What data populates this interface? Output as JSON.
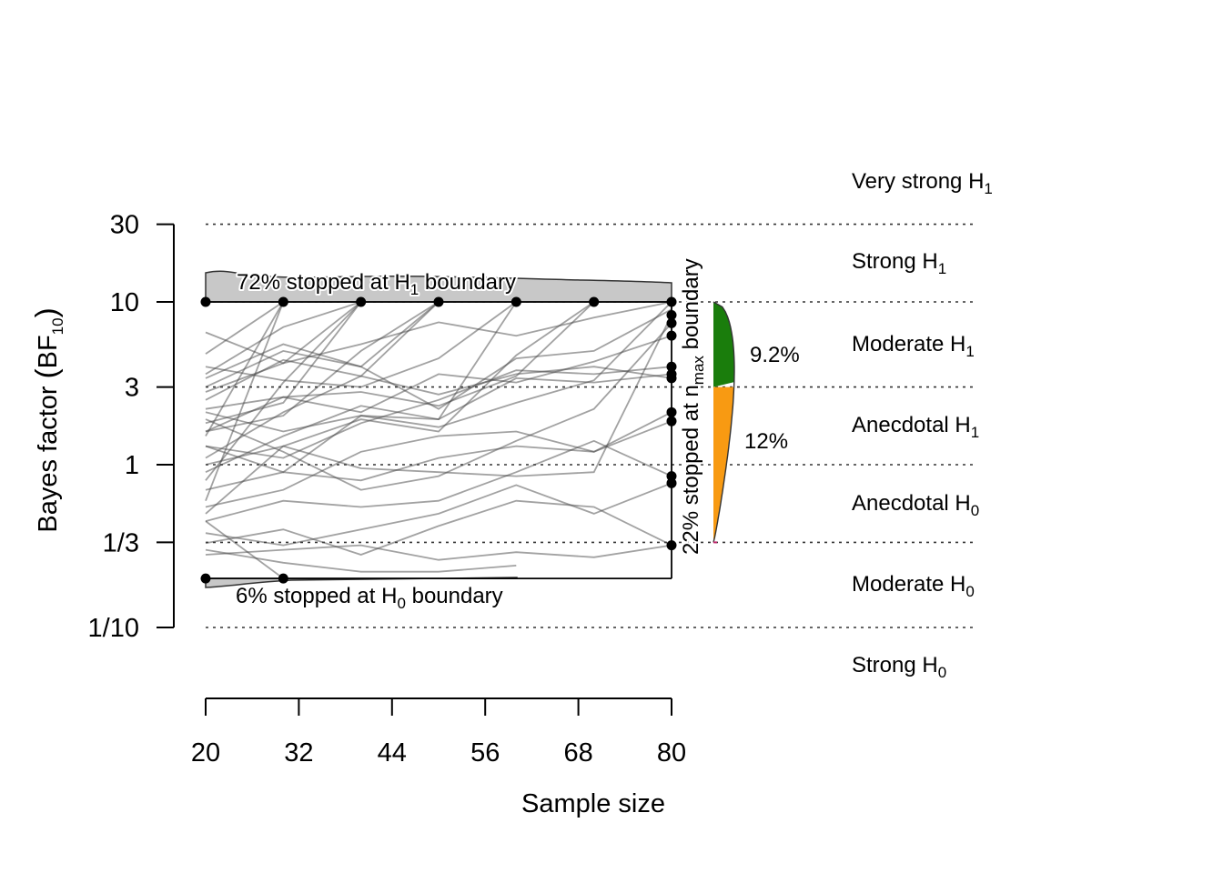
{
  "chart_data": {
    "type": "line",
    "xlabel": "Sample size",
    "ylabel": {
      "main": "Bayes factor ",
      "paren_open": "(",
      "bf": "BF",
      "sub": "10",
      "paren_close": ")"
    },
    "x_ticks": [
      20,
      32,
      44,
      56,
      68,
      80
    ],
    "y_ticks": [
      {
        "value": 30,
        "label": "30"
      },
      {
        "value": 10,
        "label": "10"
      },
      {
        "value": 3,
        "label": "3"
      },
      {
        "value": 1,
        "label": "1"
      },
      {
        "value": 0.3333,
        "label": "1/3"
      },
      {
        "value": 0.1,
        "label": "1/10"
      }
    ],
    "y_scale": "log",
    "xlim": [
      20,
      80
    ],
    "ylim": [
      0.1,
      30
    ],
    "reference_lines": [
      30,
      10,
      3,
      1,
      0.3333,
      0.1
    ],
    "evidence_labels": [
      {
        "main": "Very strong H",
        "sub": "1"
      },
      {
        "main": "Strong H",
        "sub": "1"
      },
      {
        "main": "Moderate H",
        "sub": "1"
      },
      {
        "main": "Anecdotal H",
        "sub": "1"
      },
      {
        "main": "Anecdotal H",
        "sub": "0"
      },
      {
        "main": "Moderate H",
        "sub": "0"
      },
      {
        "main": "Strong H",
        "sub": "0"
      }
    ],
    "stop_annotations": {
      "h1_boundary": {
        "main": "72% stopped at H",
        "sub": "1",
        "rest": " boundary"
      },
      "h0_boundary": {
        "main": "6% stopped at H",
        "sub": "0",
        "rest": " boundary"
      },
      "nmax": {
        "main": "22% stopped at n",
        "sub": "max",
        "rest": " boundary"
      }
    },
    "boundaries": {
      "upper": 10,
      "lower": 0.2
    },
    "stops_at_h1_n": [
      20,
      30,
      40,
      50,
      60,
      70,
      80
    ],
    "stops_at_h0_n": [
      20,
      30
    ],
    "nmax_final_bf": [
      8.3,
      7.4,
      6.2,
      4.0,
      3.6,
      3.4,
      2.1,
      1.85,
      0.85,
      0.77,
      0.32
    ],
    "nmax_distribution": [
      {
        "label": "9.2%",
        "range": [
          3,
          10
        ],
        "color": "#1a7d0c"
      },
      {
        "label": "12%",
        "range": [
          0.3333,
          3
        ],
        "color": "#f89a12"
      }
    ],
    "trajectories": [
      {
        "x": [
          20,
          30,
          40
        ],
        "y": [
          6.5,
          4.2,
          10
        ]
      },
      {
        "x": [
          20,
          30,
          40,
          50,
          60,
          70,
          80
        ],
        "y": [
          3.0,
          5.0,
          4.0,
          2.2,
          4.5,
          5.0,
          9.0
        ]
      },
      {
        "x": [
          20,
          30,
          40,
          50,
          60,
          70,
          80
        ],
        "y": [
          2.1,
          1.6,
          2.0,
          1.7,
          2.4,
          3.3,
          10
        ]
      },
      {
        "x": [
          20,
          30,
          40,
          50,
          60,
          70,
          80
        ],
        "y": [
          1.6,
          2.6,
          2.1,
          3.6,
          3.2,
          4.3,
          6.2
        ]
      },
      {
        "x": [
          20,
          30,
          40,
          50,
          60,
          70,
          80
        ],
        "y": [
          1.3,
          1.1,
          1.8,
          2.5,
          3.8,
          3.6,
          4.0
        ]
      },
      {
        "x": [
          20,
          30,
          40,
          50,
          60,
          70,
          80
        ],
        "y": [
          0.9,
          1.5,
          2.3,
          1.9,
          3.4,
          3.2,
          3.6
        ]
      },
      {
        "x": [
          20,
          30,
          40,
          50,
          60,
          70,
          80
        ],
        "y": [
          0.7,
          0.9,
          0.8,
          1.1,
          1.3,
          1.2,
          2.1
        ]
      },
      {
        "x": [
          20,
          30,
          40,
          50,
          60,
          70,
          80
        ],
        "y": [
          0.55,
          0.7,
          1.2,
          1.5,
          1.6,
          1.2,
          1.85
        ]
      },
      {
        "x": [
          20,
          30,
          40,
          50,
          60,
          70,
          80
        ],
        "y": [
          0.45,
          0.6,
          0.55,
          0.6,
          0.9,
          1.4,
          0.85
        ]
      },
      {
        "x": [
          20,
          30,
          40,
          50,
          60,
          70,
          80
        ],
        "y": [
          0.38,
          0.32,
          0.4,
          0.5,
          0.75,
          0.5,
          0.77
        ]
      },
      {
        "x": [
          20,
          30,
          40,
          50,
          60,
          70,
          80
        ],
        "y": [
          0.33,
          0.4,
          0.28,
          0.42,
          0.6,
          0.55,
          0.32
        ]
      },
      {
        "x": [
          20,
          30,
          40,
          50,
          60,
          70,
          80
        ],
        "y": [
          0.28,
          0.3,
          0.32,
          0.26,
          0.29,
          0.27,
          0.32
        ]
      },
      {
        "x": [
          20,
          30,
          40,
          50,
          60,
          70,
          80
        ],
        "y": [
          1.9,
          1.2,
          0.7,
          0.85,
          1.4,
          2.2,
          7.4
        ]
      },
      {
        "x": [
          20,
          30,
          40,
          50,
          60,
          70,
          80
        ],
        "y": [
          1.1,
          2.1,
          3.5,
          2.7,
          3.6,
          4.0,
          3.4
        ]
      },
      {
        "x": [
          20,
          30,
          40,
          50,
          60,
          70,
          80
        ],
        "y": [
          0.5,
          1.3,
          0.95,
          0.9,
          0.85,
          0.9,
          8.3
        ]
      },
      {
        "x": [
          20,
          30,
          40,
          50
        ],
        "y": [
          2.5,
          4.4,
          3.5,
          10
        ]
      },
      {
        "x": [
          20,
          30,
          40,
          50
        ],
        "y": [
          1.6,
          2.0,
          5.0,
          10
        ]
      },
      {
        "x": [
          20,
          30,
          40,
          50
        ],
        "y": [
          3.4,
          5.5,
          4.0,
          10
        ]
      },
      {
        "x": [
          20,
          30,
          40,
          50,
          60
        ],
        "y": [
          1.3,
          0.9,
          2.0,
          1.9,
          10
        ]
      },
      {
        "x": [
          20,
          30,
          40,
          50,
          60
        ],
        "y": [
          4.0,
          3.3,
          3.0,
          4.5,
          10
        ]
      },
      {
        "x": [
          20,
          30,
          40,
          50,
          60,
          70
        ],
        "y": [
          2.2,
          2.6,
          2.8,
          2.3,
          3.5,
          10
        ]
      },
      {
        "x": [
          20,
          30,
          40,
          50,
          60,
          70
        ],
        "y": [
          1.0,
          1.3,
          1.9,
          1.6,
          4.7,
          10
        ]
      },
      {
        "x": [
          20,
          30
        ],
        "y": [
          0.6,
          10
        ]
      },
      {
        "x": [
          20,
          30
        ],
        "y": [
          1.5,
          10
        ]
      },
      {
        "x": [
          20,
          30
        ],
        "y": [
          4.8,
          10
        ]
      },
      {
        "x": [
          20,
          30,
          40
        ],
        "y": [
          0.8,
          3.2,
          10
        ]
      },
      {
        "x": [
          20,
          30,
          40
        ],
        "y": [
          3.6,
          7.0,
          10
        ]
      },
      {
        "x": [
          20,
          30,
          40
        ],
        "y": [
          1.8,
          2.4,
          10
        ]
      },
      {
        "x": [
          20,
          30,
          40,
          50,
          60,
          70,
          80
        ],
        "y": [
          2.8,
          4.2,
          5.5,
          7.5,
          6.2,
          8.0,
          10
        ]
      },
      {
        "x": [
          20,
          30
        ],
        "y": [
          0.45,
          0.2
        ]
      },
      {
        "x": [
          20,
          30,
          40,
          50,
          60
        ],
        "y": [
          0.3,
          0.25,
          0.22,
          0.22,
          0.24
        ]
      }
    ]
  }
}
